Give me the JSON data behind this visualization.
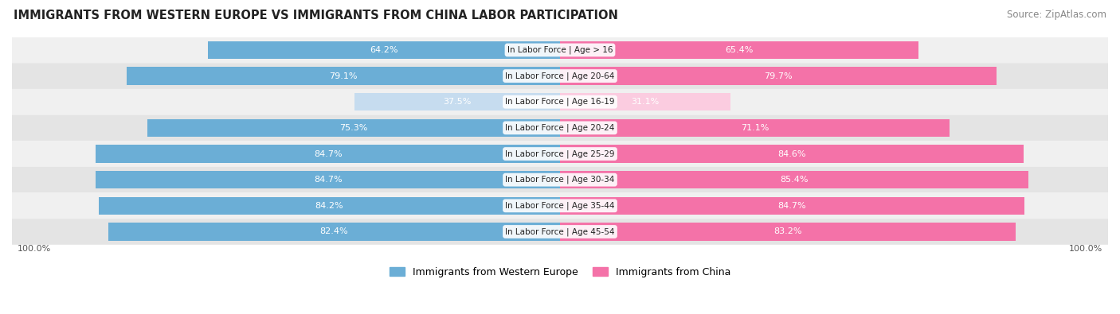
{
  "title": "IMMIGRANTS FROM WESTERN EUROPE VS IMMIGRANTS FROM CHINA LABOR PARTICIPATION",
  "source": "Source: ZipAtlas.com",
  "categories": [
    "In Labor Force | Age > 16",
    "In Labor Force | Age 20-64",
    "In Labor Force | Age 16-19",
    "In Labor Force | Age 20-24",
    "In Labor Force | Age 25-29",
    "In Labor Force | Age 30-34",
    "In Labor Force | Age 35-44",
    "In Labor Force | Age 45-54"
  ],
  "western_europe": [
    64.2,
    79.1,
    37.5,
    75.3,
    84.7,
    84.7,
    84.2,
    82.4
  ],
  "china": [
    65.4,
    79.7,
    31.1,
    71.1,
    84.6,
    85.4,
    84.7,
    83.2
  ],
  "color_western": "#6BAED6",
  "color_china": "#F472A8",
  "color_western_light": "#C6DCEF",
  "color_china_light": "#FBCCE0",
  "background_row_odd": "#F0F0F0",
  "background_row_even": "#E4E4E4",
  "bar_max": 100.0,
  "legend_label_western": "Immigrants from Western Europe",
  "legend_label_china": "Immigrants from China",
  "threshold_light": 50.0
}
